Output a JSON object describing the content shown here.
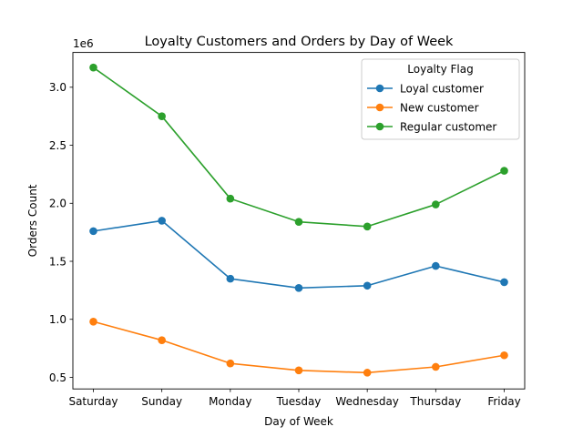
{
  "chart_data": {
    "type": "line",
    "title": "Loyalty Customers and Orders by Day of Week",
    "xlabel": "Day of Week",
    "ylabel": "Orders Count",
    "y_offset_label": "1e6",
    "categories": [
      "Saturday",
      "Sunday",
      "Monday",
      "Tuesday",
      "Wednesday",
      "Thursday",
      "Friday"
    ],
    "ylim": [
      0.4,
      3.3
    ],
    "yticks": [
      0.5,
      1.0,
      1.5,
      2.0,
      2.5,
      3.0
    ],
    "ytick_labels": [
      "0.5",
      "1.0",
      "1.5",
      "2.0",
      "2.5",
      "3.0"
    ],
    "grid": false,
    "legend": {
      "title": "Loyalty Flag",
      "placement": "top-right"
    },
    "series": [
      {
        "name": "Loyal customer",
        "color": "#1f77b4",
        "values": [
          1.76,
          1.85,
          1.35,
          1.27,
          1.29,
          1.46,
          1.32
        ]
      },
      {
        "name": "New customer",
        "color": "#ff7f0e",
        "values": [
          0.98,
          0.82,
          0.62,
          0.56,
          0.54,
          0.59,
          0.69
        ]
      },
      {
        "name": "Regular customer",
        "color": "#2ca02c",
        "values": [
          3.17,
          2.75,
          2.04,
          1.84,
          1.8,
          1.99,
          2.28
        ]
      }
    ]
  }
}
